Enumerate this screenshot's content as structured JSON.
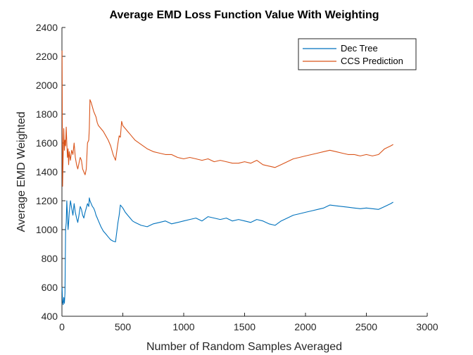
{
  "chart_data": {
    "type": "line",
    "title": "Average EMD Loss Function Value With Weighting",
    "xlabel": "Number of Random Samples Averaged",
    "ylabel": "Average EMD Weighted",
    "xlim": [
      0,
      3000
    ],
    "ylim": [
      400,
      2400
    ],
    "xticks": [
      0,
      500,
      1000,
      1500,
      2000,
      2500,
      3000
    ],
    "yticks": [
      400,
      600,
      800,
      1000,
      1200,
      1400,
      1600,
      1800,
      2000,
      2200,
      2400
    ],
    "grid": false,
    "legend_position": "top-right",
    "series": [
      {
        "name": "Dec Tree",
        "color": "#0072BD",
        "x": [
          1,
          5,
          10,
          15,
          20,
          25,
          30,
          35,
          40,
          45,
          50,
          55,
          60,
          70,
          80,
          90,
          100,
          110,
          120,
          130,
          140,
          150,
          160,
          170,
          180,
          190,
          200,
          210,
          220,
          225,
          230,
          240,
          250,
          260,
          270,
          280,
          290,
          300,
          320,
          340,
          360,
          380,
          400,
          420,
          440,
          460,
          470,
          480,
          490,
          500,
          520,
          540,
          560,
          580,
          600,
          650,
          700,
          750,
          800,
          850,
          900,
          950,
          1000,
          1050,
          1100,
          1150,
          1200,
          1250,
          1300,
          1350,
          1400,
          1450,
          1500,
          1550,
          1600,
          1650,
          1700,
          1750,
          1800,
          1850,
          1900,
          1950,
          2000,
          2050,
          2100,
          2150,
          2200,
          2250,
          2300,
          2350,
          2400,
          2450,
          2500,
          2550,
          2600,
          2650,
          2700,
          2720
        ],
        "y": [
          600,
          500,
          480,
          530,
          490,
          560,
          1000,
          1050,
          1200,
          1100,
          1000,
          1050,
          1120,
          1200,
          1150,
          1100,
          1180,
          1120,
          1080,
          1050,
          1100,
          1160,
          1140,
          1100,
          1080,
          1120,
          1150,
          1180,
          1160,
          1220,
          1200,
          1180,
          1160,
          1150,
          1130,
          1100,
          1080,
          1060,
          1020,
          990,
          970,
          950,
          930,
          920,
          915,
          1050,
          1100,
          1170,
          1160,
          1150,
          1120,
          1100,
          1080,
          1060,
          1050,
          1030,
          1020,
          1040,
          1050,
          1060,
          1040,
          1050,
          1060,
          1070,
          1080,
          1060,
          1090,
          1080,
          1070,
          1080,
          1060,
          1070,
          1060,
          1050,
          1070,
          1060,
          1040,
          1030,
          1060,
          1080,
          1100,
          1110,
          1120,
          1130,
          1140,
          1150,
          1170,
          1165,
          1160,
          1155,
          1150,
          1145,
          1150,
          1145,
          1140,
          1160,
          1180,
          1190
        ]
      },
      {
        "name": "CCS Prediction",
        "color": "#D95319",
        "x": [
          1,
          5,
          10,
          15,
          20,
          25,
          30,
          35,
          40,
          45,
          50,
          55,
          60,
          70,
          80,
          90,
          100,
          110,
          120,
          130,
          140,
          150,
          160,
          170,
          180,
          190,
          200,
          210,
          220,
          225,
          230,
          240,
          250,
          260,
          270,
          280,
          290,
          300,
          320,
          340,
          360,
          380,
          400,
          420,
          440,
          460,
          470,
          480,
          490,
          500,
          520,
          540,
          560,
          580,
          600,
          650,
          700,
          750,
          800,
          850,
          900,
          950,
          1000,
          1050,
          1100,
          1150,
          1200,
          1250,
          1300,
          1350,
          1400,
          1450,
          1500,
          1550,
          1600,
          1650,
          1700,
          1750,
          1800,
          1850,
          1900,
          1950,
          2000,
          2050,
          2100,
          2150,
          2200,
          2250,
          2300,
          2350,
          2400,
          2450,
          2500,
          2550,
          2600,
          2650,
          2700,
          2720
        ],
        "y": [
          2240,
          1300,
          1500,
          1700,
          1550,
          1620,
          1580,
          1710,
          1600,
          1500,
          1560,
          1450,
          1540,
          1480,
          1550,
          1520,
          1600,
          1500,
          1450,
          1420,
          1460,
          1500,
          1480,
          1420,
          1400,
          1380,
          1420,
          1600,
          1620,
          1700,
          1900,
          1880,
          1850,
          1820,
          1800,
          1780,
          1740,
          1720,
          1700,
          1680,
          1650,
          1620,
          1580,
          1520,
          1480,
          1600,
          1650,
          1640,
          1750,
          1720,
          1700,
          1680,
          1660,
          1640,
          1620,
          1590,
          1560,
          1540,
          1530,
          1520,
          1520,
          1500,
          1490,
          1500,
          1490,
          1480,
          1490,
          1470,
          1480,
          1470,
          1460,
          1460,
          1470,
          1460,
          1480,
          1450,
          1440,
          1430,
          1450,
          1470,
          1490,
          1500,
          1510,
          1520,
          1530,
          1540,
          1550,
          1540,
          1530,
          1520,
          1520,
          1510,
          1520,
          1510,
          1520,
          1560,
          1580,
          1590
        ]
      }
    ]
  }
}
